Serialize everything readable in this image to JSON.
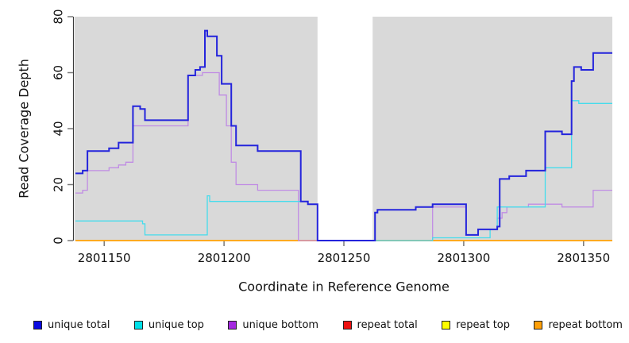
{
  "chart_data": {
    "type": "line",
    "title": "",
    "xlabel": "Coordinate in Reference Genome",
    "ylabel": "Read Coverage Depth",
    "xlim": [
      2801138,
      2801362
    ],
    "ylim": [
      0,
      80
    ],
    "x_ticks": [
      2801150,
      2801200,
      2801250,
      2801300,
      2801350
    ],
    "y_ticks": [
      0,
      20,
      40,
      60,
      80
    ],
    "grid": false,
    "legend_position": "bottom",
    "page_background": "#ffffff",
    "plot_background": "#d9d9d9",
    "axis_color": "#3a3a3a",
    "tick_color": "#7a7a7a",
    "masked_region": {
      "x_start": 2801239,
      "x_end": 2801262,
      "color": "#ffffff"
    },
    "series": [
      {
        "name": "unique total",
        "color": "#2424dc",
        "swatch_color": "#0a0ae0",
        "width": 2,
        "steps": [
          [
            2801138,
            24
          ],
          [
            2801141,
            25
          ],
          [
            2801143,
            32
          ],
          [
            2801152,
            33
          ],
          [
            2801156,
            35
          ],
          [
            2801162,
            48
          ],
          [
            2801165,
            47
          ],
          [
            2801167,
            43
          ],
          [
            2801185,
            59
          ],
          [
            2801188,
            61
          ],
          [
            2801190,
            62
          ],
          [
            2801192,
            75
          ],
          [
            2801193,
            73
          ],
          [
            2801197,
            66
          ],
          [
            2801199,
            56
          ],
          [
            2801203,
            41
          ],
          [
            2801205,
            34
          ],
          [
            2801214,
            32
          ],
          [
            2801232,
            14
          ],
          [
            2801235,
            13
          ],
          [
            2801239,
            0
          ],
          [
            2801263,
            10
          ],
          [
            2801264,
            11
          ],
          [
            2801280,
            12
          ],
          [
            2801287,
            13
          ],
          [
            2801301,
            2
          ],
          [
            2801306,
            4
          ],
          [
            2801314,
            5
          ],
          [
            2801315,
            22
          ],
          [
            2801319,
            23
          ],
          [
            2801326,
            25
          ],
          [
            2801334,
            39
          ],
          [
            2801341,
            38
          ],
          [
            2801345,
            57
          ],
          [
            2801346,
            62
          ],
          [
            2801349,
            61
          ],
          [
            2801354,
            67
          ],
          [
            2801362,
            67
          ]
        ]
      },
      {
        "name": "unique top",
        "color": "#45dcec",
        "swatch_color": "#00e0e8",
        "width": 1.3,
        "steps": [
          [
            2801138,
            7
          ],
          [
            2801166,
            6
          ],
          [
            2801167,
            2
          ],
          [
            2801193,
            16
          ],
          [
            2801194,
            14
          ],
          [
            2801235,
            13
          ],
          [
            2801239,
            0
          ],
          [
            2801287,
            1
          ],
          [
            2801311,
            4
          ],
          [
            2801314,
            12
          ],
          [
            2801334,
            26
          ],
          [
            2801345,
            50
          ],
          [
            2801348,
            49
          ],
          [
            2801362,
            49
          ]
        ]
      },
      {
        "name": "unique bottom",
        "color": "#c08ce4",
        "swatch_color": "#a428e0",
        "width": 1.3,
        "steps": [
          [
            2801138,
            17
          ],
          [
            2801141,
            18
          ],
          [
            2801143,
            25
          ],
          [
            2801152,
            26
          ],
          [
            2801156,
            27
          ],
          [
            2801159,
            28
          ],
          [
            2801162,
            41
          ],
          [
            2801185,
            59
          ],
          [
            2801191,
            60
          ],
          [
            2801198,
            52
          ],
          [
            2801201,
            41
          ],
          [
            2801203,
            28
          ],
          [
            2801205,
            20
          ],
          [
            2801214,
            18
          ],
          [
            2801231,
            0
          ],
          [
            2801287,
            12
          ],
          [
            2801301,
            2
          ],
          [
            2801306,
            4
          ],
          [
            2801314,
            8
          ],
          [
            2801316,
            10
          ],
          [
            2801318,
            12
          ],
          [
            2801327,
            13
          ],
          [
            2801341,
            12
          ],
          [
            2801354,
            18
          ],
          [
            2801362,
            18
          ]
        ]
      },
      {
        "name": "repeat total",
        "color": "#e02020",
        "swatch_color": "#ee1010",
        "width": 1.3,
        "steps": [
          [
            2801138,
            0
          ],
          [
            2801362,
            0
          ]
        ]
      },
      {
        "name": "repeat top",
        "color": "#ffff33",
        "swatch_color": "#fdfd00",
        "width": 1.3,
        "steps": [
          [
            2801138,
            0
          ],
          [
            2801362,
            0
          ]
        ]
      },
      {
        "name": "repeat bottom",
        "color": "#ffa510",
        "swatch_color": "#ffa008",
        "width": 1.8,
        "steps": [
          [
            2801138,
            0
          ],
          [
            2801362,
            0
          ]
        ]
      }
    ],
    "draw_order": [
      "repeat total",
      "repeat top",
      "repeat bottom",
      "unique bottom",
      "unique top",
      "unique total"
    ]
  }
}
